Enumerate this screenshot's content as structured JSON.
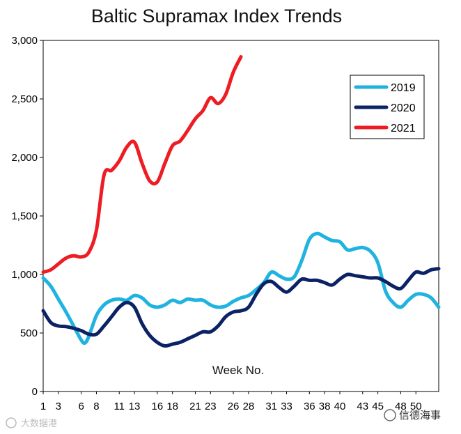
{
  "chart_data": {
    "type": "line",
    "title": "Baltic Supramax Index Trends",
    "xlabel": "Week No.",
    "ylabel": "",
    "ylim": [
      0,
      3000
    ],
    "xlim": [
      1,
      53
    ],
    "y_ticks": [
      "0",
      "500",
      "1,000",
      "1,500",
      "2,000",
      "2,500",
      "3,000"
    ],
    "y_tick_values": [
      0,
      500,
      1000,
      1500,
      2000,
      2500,
      3000
    ],
    "x_ticks": [
      "1",
      "3",
      "6",
      "8",
      "11",
      "13",
      "16",
      "18",
      "21",
      "23",
      "26",
      "28",
      "31",
      "33",
      "36",
      "38",
      "40",
      "43",
      "45",
      "48",
      "50"
    ],
    "x_tick_values": [
      1,
      3,
      6,
      8,
      11,
      13,
      16,
      18,
      21,
      23,
      26,
      28,
      31,
      33,
      36,
      38,
      40,
      43,
      45,
      48,
      50
    ],
    "grid": false,
    "legend_position": "top-right",
    "series": [
      {
        "name": "2019",
        "color": "#1fb3e0",
        "points": [
          [
            1,
            970
          ],
          [
            2,
            900
          ],
          [
            3,
            790
          ],
          [
            4,
            680
          ],
          [
            5,
            560
          ],
          [
            6,
            440
          ],
          [
            6.5,
            415
          ],
          [
            7,
            470
          ],
          [
            8,
            650
          ],
          [
            9,
            740
          ],
          [
            10,
            780
          ],
          [
            11,
            790
          ],
          [
            12,
            780
          ],
          [
            13,
            820
          ],
          [
            14,
            800
          ],
          [
            15,
            740
          ],
          [
            16,
            720
          ],
          [
            17,
            740
          ],
          [
            18,
            780
          ],
          [
            19,
            760
          ],
          [
            20,
            790
          ],
          [
            21,
            780
          ],
          [
            22,
            780
          ],
          [
            23,
            740
          ],
          [
            24,
            720
          ],
          [
            25,
            730
          ],
          [
            26,
            770
          ],
          [
            27,
            800
          ],
          [
            28,
            820
          ],
          [
            29,
            870
          ],
          [
            30,
            930
          ],
          [
            31,
            1020
          ],
          [
            32,
            990
          ],
          [
            33,
            960
          ],
          [
            34,
            980
          ],
          [
            35,
            1120
          ],
          [
            36,
            1300
          ],
          [
            37,
            1350
          ],
          [
            38,
            1320
          ],
          [
            39,
            1290
          ],
          [
            40,
            1280
          ],
          [
            41,
            1210
          ],
          [
            42,
            1220
          ],
          [
            43,
            1230
          ],
          [
            44,
            1200
          ],
          [
            45,
            1100
          ],
          [
            46,
            860
          ],
          [
            47,
            760
          ],
          [
            48,
            720
          ],
          [
            49,
            780
          ],
          [
            50,
            830
          ],
          [
            51,
            830
          ],
          [
            52,
            800
          ],
          [
            53,
            720
          ]
        ]
      },
      {
        "name": "2020",
        "color": "#0b2265",
        "points": [
          [
            1,
            690
          ],
          [
            2,
            590
          ],
          [
            3,
            560
          ],
          [
            4,
            555
          ],
          [
            5,
            540
          ],
          [
            6,
            520
          ],
          [
            7,
            490
          ],
          [
            8,
            490
          ],
          [
            9,
            560
          ],
          [
            10,
            640
          ],
          [
            11,
            720
          ],
          [
            12,
            760
          ],
          [
            13,
            720
          ],
          [
            14,
            580
          ],
          [
            15,
            480
          ],
          [
            16,
            420
          ],
          [
            17,
            390
          ],
          [
            18,
            405
          ],
          [
            19,
            420
          ],
          [
            20,
            450
          ],
          [
            21,
            480
          ],
          [
            22,
            510
          ],
          [
            23,
            510
          ],
          [
            24,
            560
          ],
          [
            25,
            640
          ],
          [
            26,
            680
          ],
          [
            27,
            690
          ],
          [
            28,
            720
          ],
          [
            29,
            830
          ],
          [
            30,
            920
          ],
          [
            31,
            940
          ],
          [
            32,
            890
          ],
          [
            33,
            850
          ],
          [
            34,
            900
          ],
          [
            35,
            960
          ],
          [
            36,
            950
          ],
          [
            37,
            950
          ],
          [
            38,
            930
          ],
          [
            39,
            910
          ],
          [
            40,
            960
          ],
          [
            41,
            1000
          ],
          [
            42,
            990
          ],
          [
            43,
            980
          ],
          [
            44,
            970
          ],
          [
            45,
            970
          ],
          [
            46,
            940
          ],
          [
            47,
            900
          ],
          [
            48,
            880
          ],
          [
            49,
            950
          ],
          [
            50,
            1020
          ],
          [
            51,
            1010
          ],
          [
            52,
            1040
          ],
          [
            53,
            1050
          ]
        ]
      },
      {
        "name": "2021",
        "color": "#ee1c23",
        "points": [
          [
            1,
            1020
          ],
          [
            2,
            1040
          ],
          [
            3,
            1090
          ],
          [
            4,
            1140
          ],
          [
            5,
            1160
          ],
          [
            6,
            1150
          ],
          [
            7,
            1190
          ],
          [
            8,
            1380
          ],
          [
            9,
            1850
          ],
          [
            10,
            1890
          ],
          [
            11,
            1970
          ],
          [
            12,
            2090
          ],
          [
            13,
            2130
          ],
          [
            14,
            1950
          ],
          [
            15,
            1800
          ],
          [
            16,
            1790
          ],
          [
            17,
            1950
          ],
          [
            18,
            2100
          ],
          [
            19,
            2140
          ],
          [
            20,
            2230
          ],
          [
            21,
            2330
          ],
          [
            22,
            2400
          ],
          [
            23,
            2510
          ],
          [
            24,
            2460
          ],
          [
            25,
            2540
          ],
          [
            26,
            2730
          ],
          [
            27,
            2860
          ]
        ]
      }
    ]
  },
  "watermarks": {
    "bottom_left": "大数据港",
    "bottom_right": "信德海事"
  }
}
